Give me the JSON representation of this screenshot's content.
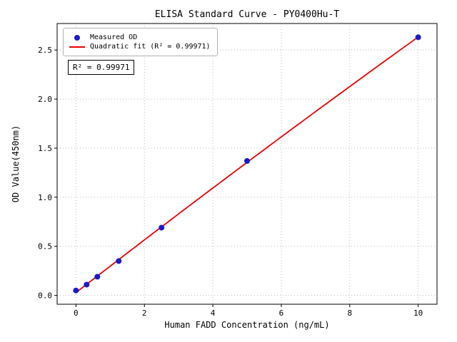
{
  "chart_data": {
    "type": "scatter",
    "title": "ELISA Standard Curve - PY0400Hu-T",
    "xlabel": "Human FADD Concentration (ng/mL)",
    "ylabel": "OD Value(450nm)",
    "x": [
      0,
      0.3125,
      0.625,
      1.25,
      2.5,
      5,
      10
    ],
    "y": [
      0.05,
      0.11,
      0.19,
      0.35,
      0.69,
      1.37,
      2.63
    ],
    "series": [
      {
        "name": "Measured OD",
        "type": "scatter",
        "color": "#1a1acd"
      },
      {
        "name": "Quadratic fit (R² = 0.99971)",
        "type": "line",
        "color": "#ee0000"
      }
    ],
    "annotation": "R² = 0.99971",
    "r_squared": 0.99971,
    "x_ticks": [
      0,
      2,
      4,
      6,
      8,
      10
    ],
    "y_ticks": [
      0.0,
      0.5,
      1.0,
      1.5,
      2.0,
      2.5
    ],
    "xlim": [
      -0.55,
      10.55
    ],
    "ylim": [
      -0.09,
      2.77
    ],
    "grid": true,
    "legend_position": "upper left",
    "colors": {
      "scatter": "#1a1acd",
      "line": "#ee0000",
      "grid": "#aaaaaa",
      "spine": "#000000",
      "background": "#ffffff"
    }
  }
}
